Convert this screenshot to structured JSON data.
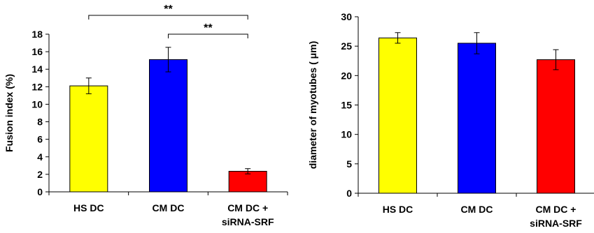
{
  "chart_data": [
    {
      "type": "bar",
      "categories": [
        "HS DC",
        "CM DC",
        "CM DC + siRNA-SRF"
      ],
      "category_lines": [
        [
          "HS DC"
        ],
        [
          "CM DC"
        ],
        [
          "CM DC +",
          "siRNA-SRF"
        ]
      ],
      "values": [
        12.1,
        15.1,
        2.35
      ],
      "errors": [
        0.9,
        1.4,
        0.3
      ],
      "colors": [
        "#ffff00",
        "#0000ff",
        "#ff0000"
      ],
      "ylabel": "Fusion index (%)",
      "xlabel": "",
      "title": "",
      "ylim": [
        0,
        18
      ],
      "yticks": [
        0,
        2,
        4,
        6,
        8,
        10,
        12,
        14,
        16,
        18
      ],
      "significance": [
        {
          "from": 0,
          "to": 2,
          "label": "**"
        },
        {
          "from": 1,
          "to": 2,
          "label": "**"
        }
      ],
      "grid": false
    },
    {
      "type": "bar",
      "categories": [
        "HS DC",
        "CM DC",
        "CM DC + siRNA-SRF"
      ],
      "category_lines": [
        [
          "HS DC"
        ],
        [
          "CM DC"
        ],
        [
          "CM DC +",
          "siRNA-SRF"
        ]
      ],
      "values": [
        26.4,
        25.5,
        22.7
      ],
      "errors": [
        0.9,
        1.8,
        1.7
      ],
      "colors": [
        "#ffff00",
        "#0000ff",
        "#ff0000"
      ],
      "ylabel": "diameter of myotubes ( μm)",
      "xlabel": "",
      "title": "",
      "ylim": [
        0,
        30
      ],
      "yticks": [
        0,
        5,
        10,
        15,
        20,
        25,
        30
      ],
      "significance": [],
      "grid": false
    }
  ]
}
